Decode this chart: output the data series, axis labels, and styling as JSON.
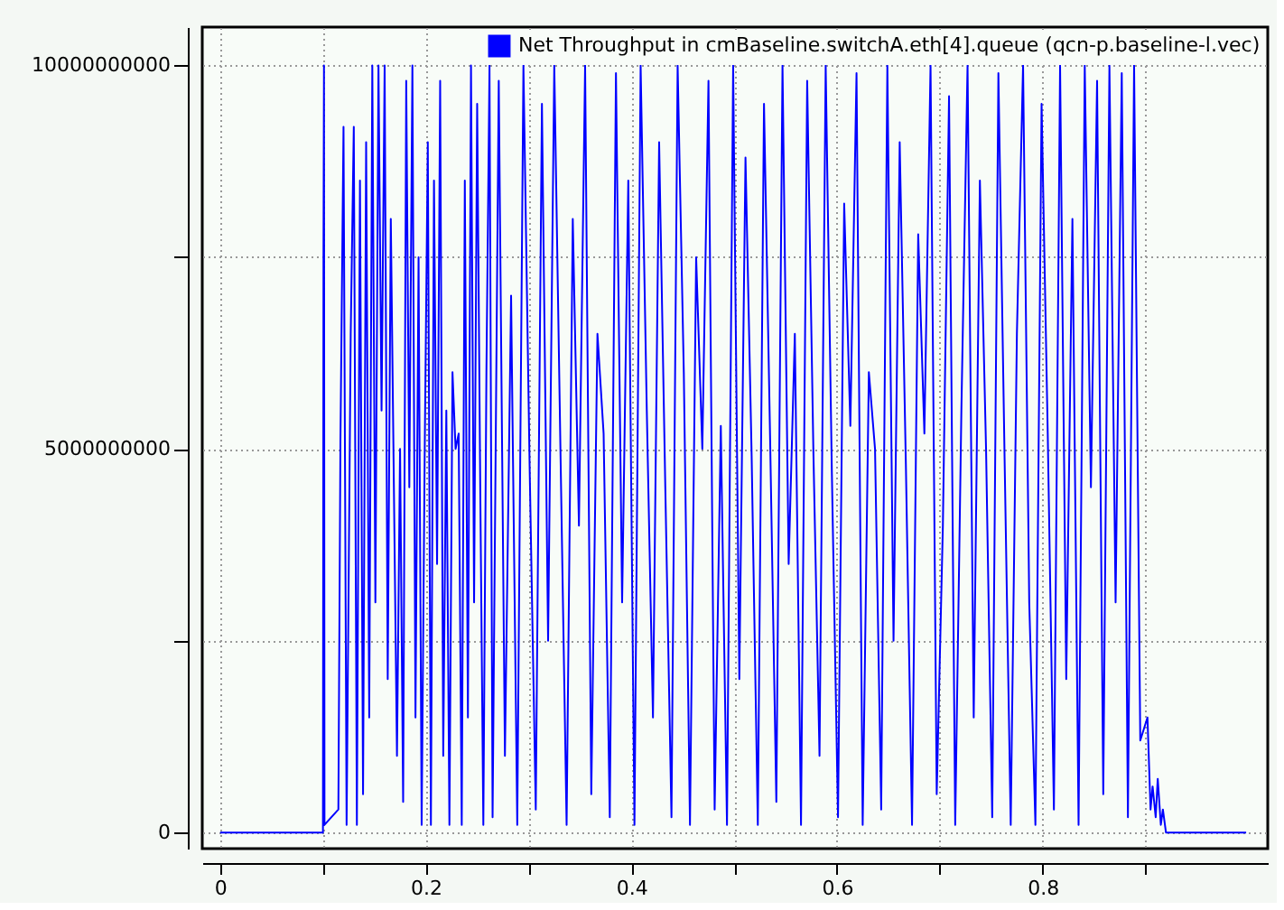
{
  "chart_data": {
    "type": "line",
    "xlim": [
      -0.0174,
      1.019
    ],
    "ylim": [
      -210000000.0,
      10500000000.0
    ],
    "xticks": [
      0,
      {
        "value": 0.1,
        "label": null
      },
      0.2,
      {
        "value": 0.3,
        "label": null
      },
      0.4,
      {
        "value": 0.5,
        "label": null
      },
      0.6,
      {
        "value": 0.7,
        "label": null
      },
      0.8,
      {
        "value": 0.9,
        "label": null
      }
    ],
    "yticks": [
      0,
      {
        "value": 2500000000,
        "label": null
      },
      5000000000,
      {
        "value": 7500000000,
        "label": null
      },
      10000000000
    ],
    "grid": true,
    "legend": "top right",
    "marker": "none",
    "line_style": "solid",
    "series": [
      {
        "name": "Net Throughput in cmBaseline.switchA.eth[4].queue (qcn-p.baseline-l.vec)",
        "color": "#0000ff",
        "x": [
          0,
          0.1,
          0.1005,
          0.101,
          0.1015,
          0.115,
          0.117,
          0.12,
          0.123,
          0.127,
          0.13,
          0.133,
          0.136,
          0.139,
          0.142,
          0.145,
          0.148,
          0.151,
          0.154,
          0.157,
          0.16,
          0.163,
          0.166,
          0.169,
          0.172,
          0.175,
          0.178,
          0.181,
          0.184,
          0.187,
          0.19,
          0.193,
          0.196,
          0.199,
          0.202,
          0.205,
          0.208,
          0.211,
          0.214,
          0.217,
          0.22,
          0.223,
          0.226,
          0.229,
          0.232,
          0.235,
          0.238,
          0.241,
          0.244,
          0.247,
          0.25,
          0.253,
          0.256,
          0.259,
          0.262,
          0.265,
          0.271,
          0.277,
          0.283,
          0.289,
          0.295,
          0.301,
          0.307,
          0.313,
          0.319,
          0.325,
          0.331,
          0.337,
          0.343,
          0.349,
          0.355,
          0.361,
          0.367,
          0.373,
          0.379,
          0.385,
          0.391,
          0.397,
          0.403,
          0.409,
          0.415,
          0.421,
          0.427,
          0.433,
          0.439,
          0.445,
          0.451,
          0.457,
          0.463,
          0.469,
          0.475,
          0.481,
          0.487,
          0.493,
          0.499,
          0.505,
          0.511,
          0.517,
          0.523,
          0.529,
          0.535,
          0.541,
          0.547,
          0.553,
          0.559,
          0.565,
          0.571,
          0.577,
          0.583,
          0.589,
          0.595,
          0.601,
          0.607,
          0.613,
          0.619,
          0.625,
          0.631,
          0.637,
          0.643,
          0.649,
          0.655,
          0.661,
          0.667,
          0.673,
          0.679,
          0.685,
          0.691,
          0.697,
          0.703,
          0.709,
          0.715,
          0.721,
          0.727,
          0.733,
          0.739,
          0.745,
          0.751,
          0.757,
          0.763,
          0.769,
          0.775,
          0.781,
          0.787,
          0.793,
          0.799,
          0.805,
          0.811,
          0.817,
          0.823,
          0.829,
          0.835,
          0.841,
          0.847,
          0.853,
          0.859,
          0.865,
          0.871,
          0.877,
          0.883,
          0.889,
          0.895,
          0.902,
          0.905,
          0.907,
          0.91,
          0.912,
          0.915,
          0.917,
          0.92,
          0.998
        ],
        "values": [
          0,
          0,
          7500000000.0,
          10000000000.0,
          100000000.0,
          300000000.0,
          5100000000.0,
          9200000000.0,
          100000000.0,
          6500000000.0,
          9200000000.0,
          100000000.0,
          8500000000.0,
          500000000.0,
          9000000000.0,
          1500000000.0,
          10000000000.0,
          3000000000.0,
          10000000000.0,
          5500000000.0,
          10000000000.0,
          2000000000.0,
          8000000000.0,
          4500000000.0,
          1000000000.0,
          5000000000.0,
          400000000.0,
          9800000000.0,
          4500000000.0,
          10000000000.0,
          1500000000.0,
          7500000000.0,
          100000000.0,
          5000000000.0,
          9000000000.0,
          100000000.0,
          8500000000.0,
          3500000000.0,
          9800000000.0,
          1000000000.0,
          5500000000.0,
          100000000.0,
          6000000000.0,
          5000000000.0,
          5200000000.0,
          100000000.0,
          8500000000.0,
          1500000000.0,
          10000000000.0,
          3000000000.0,
          9500000000.0,
          4500000000.0,
          100000000.0,
          6000000000.0,
          10000000000.0,
          200000000.0,
          9800000000.0,
          1000000000.0,
          7000000000.0,
          100000000.0,
          10000000000.0,
          4800000000.0,
          300000000.0,
          9500000000.0,
          2500000000.0,
          10000000000.0,
          5000000000.0,
          100000000.0,
          8000000000.0,
          4000000000.0,
          10000000000.0,
          500000000.0,
          6500000000.0,
          5200000000.0,
          200000000.0,
          9900000000.0,
          3000000000.0,
          8500000000.0,
          100000000.0,
          10000000000.0,
          5500000000.0,
          1500000000.0,
          9000000000.0,
          4500000000.0,
          200000000.0,
          10000000000.0,
          6000000000.0,
          100000000.0,
          7500000000.0,
          5000000000.0,
          9800000000.0,
          300000000.0,
          5300000000.0,
          100000000.0,
          10000000000.0,
          2000000000.0,
          8800000000.0,
          4900000000.0,
          100000000.0,
          9500000000.0,
          5100000000.0,
          400000000.0,
          10000000000.0,
          3500000000.0,
          6500000000.0,
          100000000.0,
          9800000000.0,
          5000000000.0,
          1000000000.0,
          10000000000.0,
          4700000000.0,
          200000000.0,
          8200000000.0,
          5300000000.0,
          9900000000.0,
          100000000.0,
          6000000000.0,
          5000000000.0,
          300000000.0,
          10000000000.0,
          2500000000.0,
          9000000000.0,
          4800000000.0,
          100000000.0,
          7800000000.0,
          5200000000.0,
          10000000000.0,
          500000000.0,
          4000000000.0,
          9600000000.0,
          100000000.0,
          5500000000.0,
          10000000000.0,
          1500000000.0,
          8500000000.0,
          5000000000.0,
          200000000.0,
          9900000000.0,
          4900000000.0,
          100000000.0,
          6500000000.0,
          10000000000.0,
          3000000000.0,
          100000000.0,
          9500000000.0,
          5200000000.0,
          300000000.0,
          10000000000.0,
          2000000000.0,
          8000000000.0,
          100000000.0,
          10000000000.0,
          4500000000.0,
          9800000000.0,
          500000000.0,
          10000000000.0,
          3000000000.0,
          9900000000.0,
          200000000.0,
          10000000000.0,
          1200000000.0,
          1500000000.0,
          300000000.0,
          600000000.0,
          200000000.0,
          700000000.0,
          100000000.0,
          300000000.0,
          0,
          0
        ]
      }
    ]
  }
}
